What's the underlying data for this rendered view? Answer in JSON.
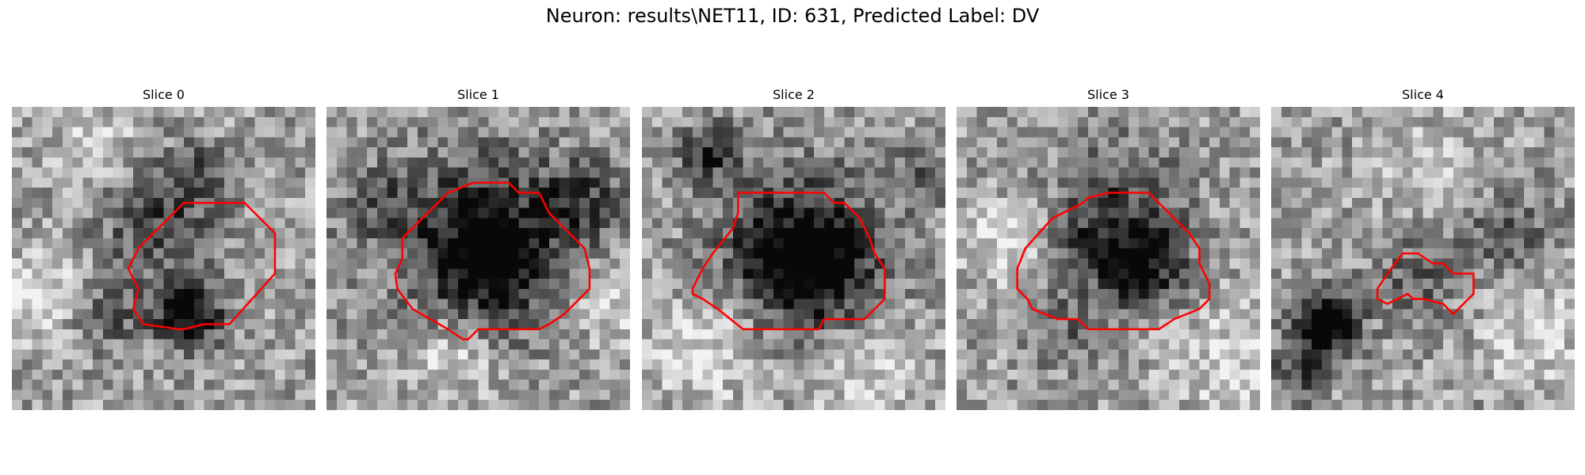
{
  "figure": {
    "title": "Neuron: results\\NET11, ID: 631, Predicted Label: DV",
    "outline_color": "#ff0000",
    "colormap": "grayscale"
  },
  "panels": [
    {
      "title": "Slice 0"
    },
    {
      "title": "Slice 1"
    },
    {
      "title": "Slice 2"
    },
    {
      "title": "Slice 3"
    },
    {
      "title": "Slice 4"
    }
  ]
}
